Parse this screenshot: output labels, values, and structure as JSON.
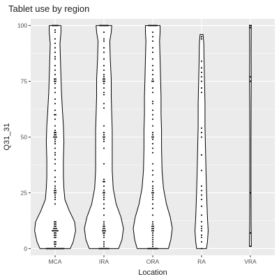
{
  "chart_data": {
    "type": "violin",
    "title": "Tablet use by region",
    "xlabel": "Location",
    "ylabel": "Q31_31",
    "categories": [
      "MCA",
      "IRA",
      "ORA",
      "RA",
      "VRA"
    ],
    "ylim": [
      -3,
      103
    ],
    "yticks": [
      0,
      25,
      50,
      75,
      100
    ],
    "grid": true,
    "background": "#ebebeb",
    "gridline_color": "#ffffff",
    "violin_fill": "#ffffff",
    "violin_stroke": "#000000",
    "point_color": "#000000",
    "violins": [
      {
        "category": "MCA",
        "width_profile": [
          [
            0,
            0.62
          ],
          [
            3,
            0.74
          ],
          [
            8,
            0.84
          ],
          [
            12,
            0.8
          ],
          [
            17,
            0.58
          ],
          [
            22,
            0.4
          ],
          [
            27,
            0.36
          ],
          [
            32,
            0.34
          ],
          [
            40,
            0.34
          ],
          [
            48,
            0.36
          ],
          [
            55,
            0.34
          ],
          [
            62,
            0.3
          ],
          [
            70,
            0.26
          ],
          [
            77,
            0.24
          ],
          [
            84,
            0.22
          ],
          [
            92,
            0.2
          ],
          [
            97,
            0.24
          ],
          [
            100,
            0.24
          ]
        ]
      },
      {
        "category": "IRA",
        "width_profile": [
          [
            0,
            0.6
          ],
          [
            4,
            0.74
          ],
          [
            9,
            0.8
          ],
          [
            14,
            0.7
          ],
          [
            20,
            0.5
          ],
          [
            27,
            0.38
          ],
          [
            35,
            0.34
          ],
          [
            45,
            0.34
          ],
          [
            53,
            0.34
          ],
          [
            60,
            0.32
          ],
          [
            68,
            0.3
          ],
          [
            76,
            0.3
          ],
          [
            85,
            0.26
          ],
          [
            93,
            0.24
          ],
          [
            97,
            0.3
          ],
          [
            100,
            0.32
          ]
        ]
      },
      {
        "category": "ORA",
        "width_profile": [
          [
            0,
            0.64
          ],
          [
            4,
            0.74
          ],
          [
            9,
            0.8
          ],
          [
            14,
            0.72
          ],
          [
            20,
            0.56
          ],
          [
            27,
            0.44
          ],
          [
            35,
            0.38
          ],
          [
            45,
            0.36
          ],
          [
            53,
            0.36
          ],
          [
            60,
            0.34
          ],
          [
            68,
            0.34
          ],
          [
            76,
            0.32
          ],
          [
            85,
            0.3
          ],
          [
            93,
            0.28
          ],
          [
            97,
            0.3
          ],
          [
            100,
            0.3
          ]
        ]
      },
      {
        "category": "RA",
        "width_profile": [
          [
            0,
            0.2
          ],
          [
            3,
            0.24
          ],
          [
            8,
            0.27
          ],
          [
            14,
            0.24
          ],
          [
            20,
            0.22
          ],
          [
            27,
            0.2
          ],
          [
            35,
            0.18
          ],
          [
            45,
            0.16
          ],
          [
            55,
            0.14
          ],
          [
            65,
            0.14
          ],
          [
            75,
            0.12
          ],
          [
            85,
            0.1
          ],
          [
            92,
            0.09
          ],
          [
            96,
            0.06
          ]
        ]
      },
      {
        "category": "VRA",
        "width_profile": [
          [
            1,
            0.04
          ],
          [
            10,
            0.03
          ],
          [
            25,
            0.025
          ],
          [
            50,
            0.025
          ],
          [
            65,
            0.03
          ],
          [
            75,
            0.035
          ],
          [
            88,
            0.03
          ],
          [
            100,
            0.035
          ]
        ]
      }
    ],
    "points": [
      {
        "category": "MCA",
        "y": [
          0,
          0,
          0,
          0,
          0,
          0,
          0,
          0,
          0,
          0,
          0,
          0,
          0,
          0,
          1,
          2,
          2,
          3,
          3,
          5,
          5,
          6,
          6,
          7,
          7,
          8,
          8,
          8,
          8,
          8,
          9,
          9,
          9,
          10,
          10,
          11,
          11,
          12,
          12,
          20,
          22,
          23,
          24,
          25,
          25,
          26,
          26,
          27,
          28,
          30,
          32,
          35,
          38,
          40,
          42,
          43,
          45,
          47,
          48,
          49,
          50,
          50,
          50,
          51,
          51,
          52,
          52,
          53,
          55,
          58,
          60,
          60,
          62,
          65,
          67,
          70,
          72,
          74,
          75,
          75,
          76,
          76,
          78,
          80,
          82,
          85,
          86,
          88,
          90,
          92,
          94,
          97,
          98,
          100,
          100,
          100,
          100,
          100
        ]
      },
      {
        "category": "IRA",
        "y": [
          0,
          0,
          0,
          0,
          0,
          0,
          0,
          0,
          1,
          2,
          3,
          5,
          6,
          7,
          7,
          8,
          8,
          8,
          9,
          9,
          10,
          10,
          11,
          12,
          15,
          18,
          20,
          22,
          23,
          24,
          25,
          25,
          26,
          28,
          30,
          30,
          31,
          38,
          45,
          48,
          49,
          50,
          50,
          51,
          52,
          55,
          63,
          65,
          69,
          70,
          72,
          74,
          75,
          75,
          76,
          76,
          77,
          78,
          80,
          82,
          85,
          88,
          90,
          93,
          94,
          97,
          100,
          100,
          100,
          100,
          100,
          100,
          100
        ]
      },
      {
        "category": "ORA",
        "y": [
          0,
          0,
          0,
          0,
          0,
          0,
          0,
          0,
          1,
          2,
          3,
          4,
          5,
          6,
          7,
          8,
          8,
          9,
          9,
          10,
          10,
          11,
          12,
          15,
          18,
          20,
          22,
          23,
          24,
          25,
          25,
          26,
          27,
          28,
          30,
          33,
          35,
          38,
          43,
          45,
          47,
          49,
          50,
          50,
          51,
          52,
          55,
          58,
          60,
          62,
          65,
          66,
          70,
          72,
          75,
          75,
          76,
          78,
          80,
          82,
          85,
          88,
          90,
          93,
          95,
          97,
          100,
          100,
          100,
          100,
          100,
          100,
          100
        ]
      },
      {
        "category": "RA",
        "y": [
          0,
          3,
          5,
          6,
          8,
          9,
          10,
          12,
          15,
          19,
          22,
          24,
          26,
          28,
          35,
          42,
          50,
          52,
          54,
          70,
          72,
          75,
          77,
          79,
          81,
          84,
          94,
          95
        ]
      },
      {
        "category": "VRA",
        "y": [
          1,
          7,
          25,
          75,
          77,
          99,
          100,
          100
        ]
      }
    ]
  }
}
